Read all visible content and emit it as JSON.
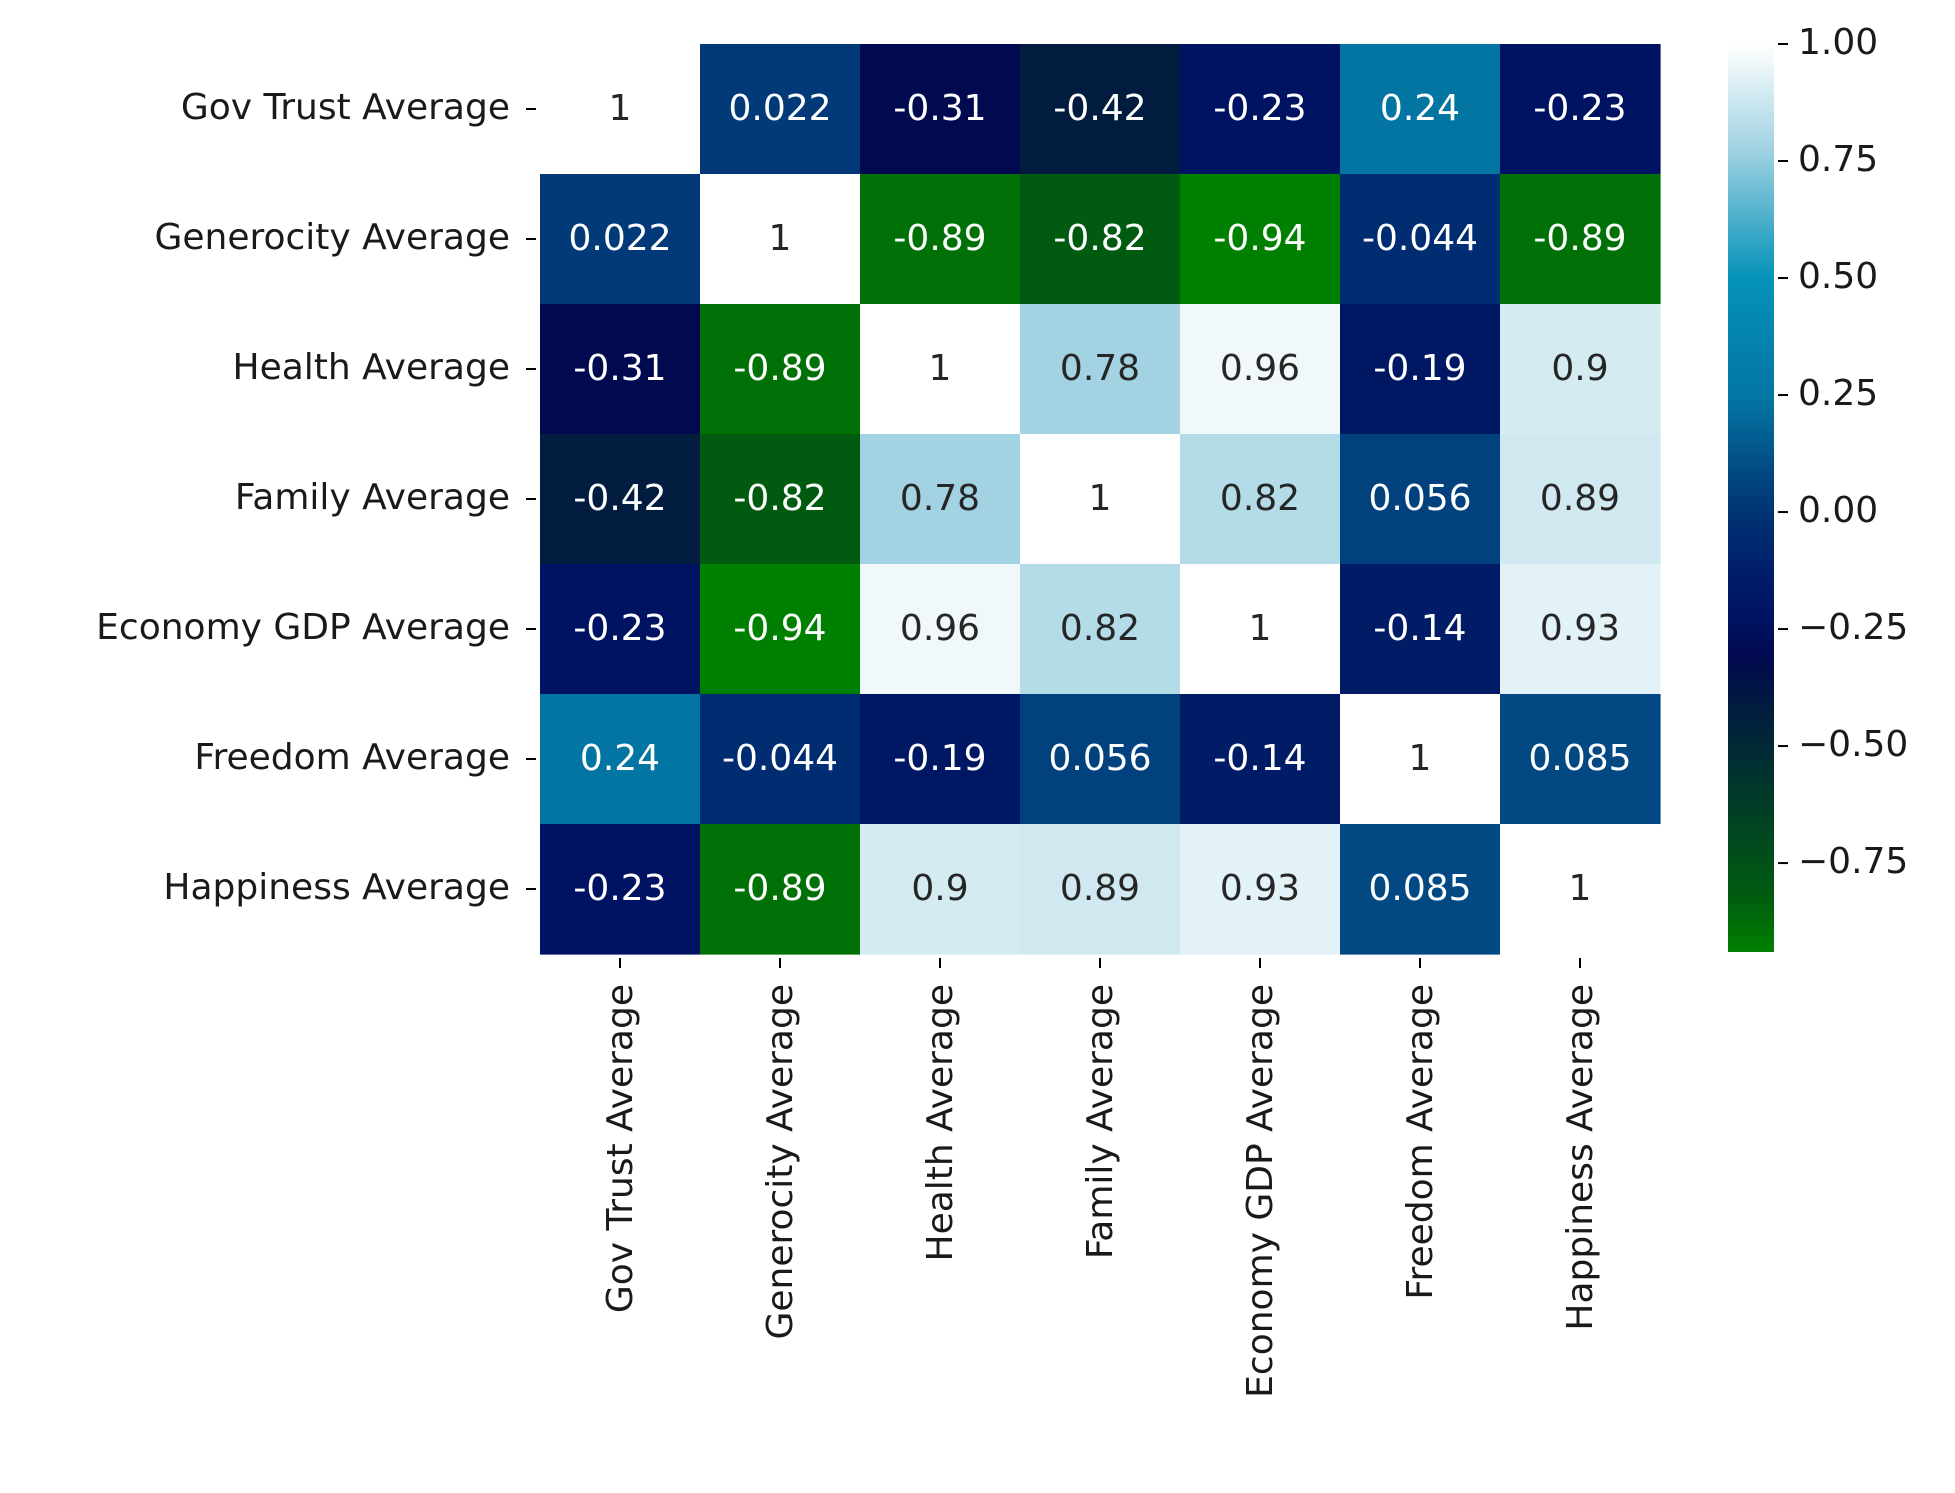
{
  "chart_data": {
    "type": "heatmap",
    "title": "",
    "xlabel": "",
    "ylabel": "",
    "row_labels": [
      "Gov Trust Average",
      "Generocity Average",
      "Health Average",
      "Family Average",
      "Economy GDP Average",
      "Freedom Average",
      "Happiness Average"
    ],
    "column_labels": [
      "Gov Trust Average",
      "Generocity Average",
      "Health Average",
      "Family Average",
      "Economy GDP Average",
      "Freedom Average",
      "Happiness Average"
    ],
    "values": [
      [
        1,
        0.022,
        -0.31,
        -0.42,
        -0.23,
        0.24,
        -0.23
      ],
      [
        0.022,
        1,
        -0.89,
        -0.82,
        -0.94,
        -0.044,
        -0.89
      ],
      [
        -0.31,
        -0.89,
        1,
        0.78,
        0.96,
        -0.19,
        0.9
      ],
      [
        -0.42,
        -0.82,
        0.78,
        1,
        0.82,
        0.056,
        0.89
      ],
      [
        -0.23,
        -0.94,
        0.96,
        0.82,
        1,
        -0.14,
        0.93
      ],
      [
        0.24,
        -0.044,
        -0.19,
        0.056,
        -0.14,
        1,
        0.085
      ],
      [
        -0.23,
        -0.89,
        0.9,
        0.89,
        0.93,
        0.085,
        1
      ]
    ],
    "annotations": [
      [
        "1",
        "0.022",
        "-0.31",
        "-0.42",
        "-0.23",
        "0.24",
        "-0.23"
      ],
      [
        "0.022",
        "1",
        "-0.89",
        "-0.82",
        "-0.94",
        "-0.044",
        "-0.89"
      ],
      [
        "-0.31",
        "-0.89",
        "1",
        "0.78",
        "0.96",
        "-0.19",
        "0.9"
      ],
      [
        "-0.42",
        "-0.82",
        "0.78",
        "1",
        "0.82",
        "0.056",
        "0.89"
      ],
      [
        "-0.23",
        "-0.94",
        "0.96",
        "0.82",
        "1",
        "-0.14",
        "0.93"
      ],
      [
        "0.24",
        "-0.044",
        "-0.19",
        "0.056",
        "-0.14",
        "1",
        "0.085"
      ],
      [
        "-0.23",
        "-0.89",
        "0.9",
        "0.89",
        "0.93",
        "0.085",
        "1"
      ]
    ],
    "colorbar": {
      "range": [
        -0.94,
        1.0
      ],
      "ticks": [
        1.0,
        0.75,
        0.5,
        0.25,
        0.0,
        -0.25,
        -0.5,
        -0.75
      ],
      "tick_labels": [
        "1.00",
        "0.75",
        "0.50",
        "0.25",
        "0.00",
        "−0.25",
        "−0.50",
        "−0.75"
      ],
      "colormap": "ocean",
      "stops": [
        {
          "value": -0.94,
          "color": "#008000"
        },
        {
          "value": -0.82,
          "color": "#005b10"
        },
        {
          "value": -0.42,
          "color": "#011c3f"
        },
        {
          "value": -0.31,
          "color": "#01094f"
        },
        {
          "value": -0.23,
          "color": "#001362"
        },
        {
          "value": -0.14,
          "color": "#011c67"
        },
        {
          "value": 0.0,
          "color": "#003475"
        },
        {
          "value": 0.085,
          "color": "#024983"
        },
        {
          "value": 0.24,
          "color": "#0375a2"
        },
        {
          "value": 0.5,
          "color": "#0592b8"
        },
        {
          "value": 0.78,
          "color": "#a3d3e3"
        },
        {
          "value": 0.9,
          "color": "#d4ebf2"
        },
        {
          "value": 0.96,
          "color": "#f0f8fa"
        },
        {
          "value": 1.0,
          "color": "#ffffff"
        }
      ]
    },
    "annotation_colors": {
      "light_text": "#ffffff",
      "dark_text": "#262626"
    },
    "axis_color": "#000000"
  }
}
